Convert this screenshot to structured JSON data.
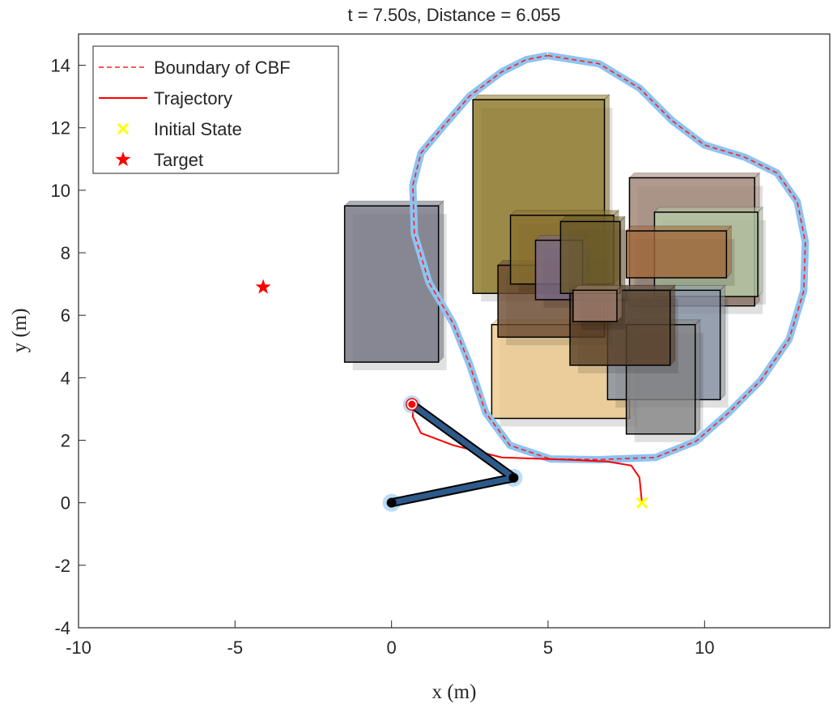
{
  "chart_data": {
    "type": "line",
    "title": "t = 7.50s, Distance = 6.055",
    "xlabel": "x (m)",
    "ylabel": "y (m)",
    "xlim": [
      -10,
      14
    ],
    "ylim": [
      -4,
      15
    ],
    "xticks": [
      -10,
      -5,
      0,
      5,
      10
    ],
    "yticks": [
      -4,
      -2,
      0,
      2,
      4,
      6,
      8,
      10,
      12,
      14
    ],
    "obstacles": [
      {
        "x": [
          -1.5,
          1.5
        ],
        "y": [
          4.5,
          9.5
        ],
        "color": "#6f7080"
      },
      {
        "x": [
          2.6,
          6.8
        ],
        "y": [
          6.7,
          12.9
        ],
        "color": "#8a7420"
      },
      {
        "x": [
          3.2,
          7.6
        ],
        "y": [
          2.7,
          5.7
        ],
        "color": "#ecc888"
      },
      {
        "x": [
          7.6,
          11.6
        ],
        "y": [
          6.3,
          10.4
        ],
        "color": "#9c8070"
      },
      {
        "x": [
          8.4,
          11.7
        ],
        "y": [
          6.6,
          9.3
        ],
        "color": "#b8caa8"
      },
      {
        "x": [
          6.9,
          10.5
        ],
        "y": [
          3.3,
          6.8
        ],
        "color": "#8590a2"
      },
      {
        "x": [
          7.5,
          9.7
        ],
        "y": [
          2.2,
          5.7
        ],
        "color": "#858585"
      },
      {
        "x": [
          3.4,
          6.8
        ],
        "y": [
          5.3,
          7.6
        ],
        "color": "#6a4a30"
      },
      {
        "x": [
          3.8,
          7.1
        ],
        "y": [
          7.0,
          9.2
        ],
        "color": "#8a7030"
      },
      {
        "x": [
          4.6,
          6.1
        ],
        "y": [
          6.5,
          8.4
        ],
        "color": "#7a6a8a"
      },
      {
        "x": [
          5.7,
          8.9
        ],
        "y": [
          4.4,
          6.8
        ],
        "color": "#583e26"
      },
      {
        "x": [
          5.4,
          7.3
        ],
        "y": [
          6.7,
          9.0
        ],
        "color": "#6a5a2a"
      },
      {
        "x": [
          5.8,
          7.2
        ],
        "y": [
          5.8,
          6.8
        ],
        "color": "#a08070"
      },
      {
        "x": [
          7.5,
          10.7
        ],
        "y": [
          7.2,
          8.7
        ],
        "color": "#a0683a"
      }
    ],
    "arm": {
      "x": [
        0,
        3.9,
        0.65
      ],
      "y": [
        0,
        0.8,
        3.15
      ],
      "color": "#2d5a8a"
    },
    "series": [
      {
        "name": "Boundary of CBF",
        "color": "#ff2020",
        "style": "dashed",
        "x": [
          4.99,
          6.63,
          7.92,
          8.96,
          9.99,
          11.28,
          12.32,
          12.96,
          13.22,
          13.17,
          12.7,
          11.8,
          10.77,
          9.73,
          8.44,
          6.63,
          5.08,
          3.78,
          3.01,
          2.49,
          1.97,
          1.2,
          0.73,
          0.68,
          0.94,
          1.59,
          2.49,
          3.52,
          4.3,
          4.99
        ],
        "y": [
          14.31,
          14.05,
          13.27,
          12.23,
          11.45,
          11.06,
          10.55,
          9.64,
          8.34,
          6.78,
          5.23,
          3.92,
          2.88,
          1.97,
          1.45,
          1.38,
          1.4,
          1.84,
          2.88,
          4.44,
          5.74,
          7.04,
          8.6,
          10.16,
          11.19,
          11.97,
          13.01,
          13.79,
          14.18,
          14.31
        ]
      },
      {
        "name": "Trajectory",
        "color": "#ff0000",
        "style": "solid",
        "x": [
          8.0,
          7.92,
          7.66,
          6.89,
          5.59,
          3.52,
          1.97,
          0.94,
          0.68,
          0.68
        ],
        "y": [
          0,
          0.81,
          1.19,
          1.32,
          1.38,
          1.45,
          1.84,
          2.23,
          2.75,
          3.19
        ]
      },
      {
        "name": "Initial State",
        "color": "#ffff00",
        "style": "x-marker",
        "x": [
          8.0
        ],
        "y": [
          0
        ]
      },
      {
        "name": "Target",
        "color": "#ff0000",
        "style": "star-marker",
        "x": [
          -4.1
        ],
        "y": [
          6.9
        ]
      }
    ]
  }
}
